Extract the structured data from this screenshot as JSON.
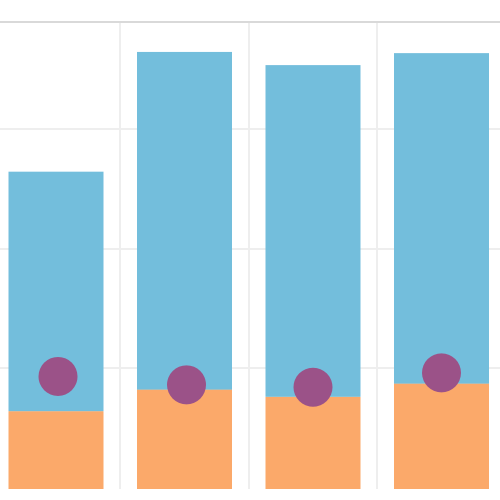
{
  "chart_data": {
    "type": "bar",
    "stacked": true,
    "title": "",
    "xlabel": "",
    "ylabel": "",
    "ylim": [
      0,
      390
    ],
    "grid": {
      "horizontal": true,
      "vertical": true
    },
    "legend": "none",
    "categories": [
      "",
      "",
      "",
      ""
    ],
    "series": [
      {
        "kind": "bar",
        "values": [
          65,
          83,
          77,
          88
        ],
        "color": "#fba96a"
      },
      {
        "kind": "bar",
        "values": [
          200,
          282,
          277,
          276
        ],
        "color": "#73bedc"
      },
      {
        "kind": "point",
        "values": [
          94,
          87,
          85,
          97
        ],
        "color": "#9b5288"
      }
    ]
  }
}
